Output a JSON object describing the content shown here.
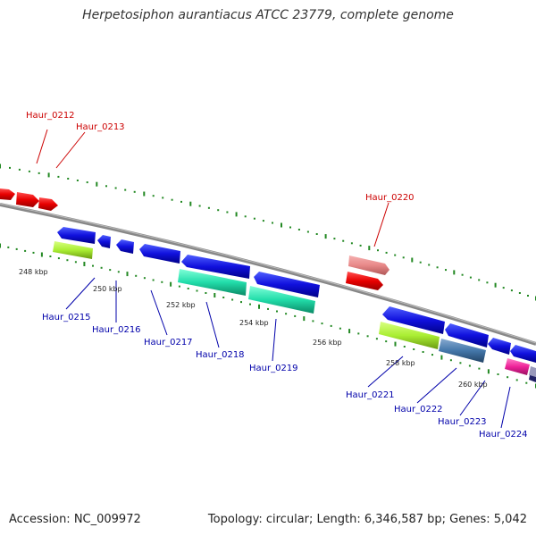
{
  "title": "Herpetosiphon aurantiacus ATCC 23779, complete genome",
  "footer": {
    "accession": "Accession: NC_009972",
    "summary": "Topology: circular; Length: 6,346,587 bp; Genes: 5,042"
  },
  "ticks": [
    "248 kbp",
    "250 kbp",
    "252 kbp",
    "254 kbp",
    "256 kbp",
    "258 kbp",
    "260 kbp"
  ],
  "genes_forward": [
    "Haur_0212",
    "Haur_0213",
    "Haur_0220"
  ],
  "genes_reverse": [
    "Haur_0215",
    "Haur_0216",
    "Haur_0217",
    "Haur_0218",
    "Haur_0219",
    "Haur_0221",
    "Haur_0222",
    "Haur_0223",
    "Haur_0224"
  ],
  "colors": {
    "forward_cds": "#e80000",
    "forward_pseudo": "#e88888",
    "reverse_cds": "#1010dd",
    "lime": "#aaee33",
    "teal": "#22ddaa",
    "steel": "#4477aa",
    "magenta": "#ee2299",
    "backbone": "#888888",
    "dots": "#228822"
  }
}
